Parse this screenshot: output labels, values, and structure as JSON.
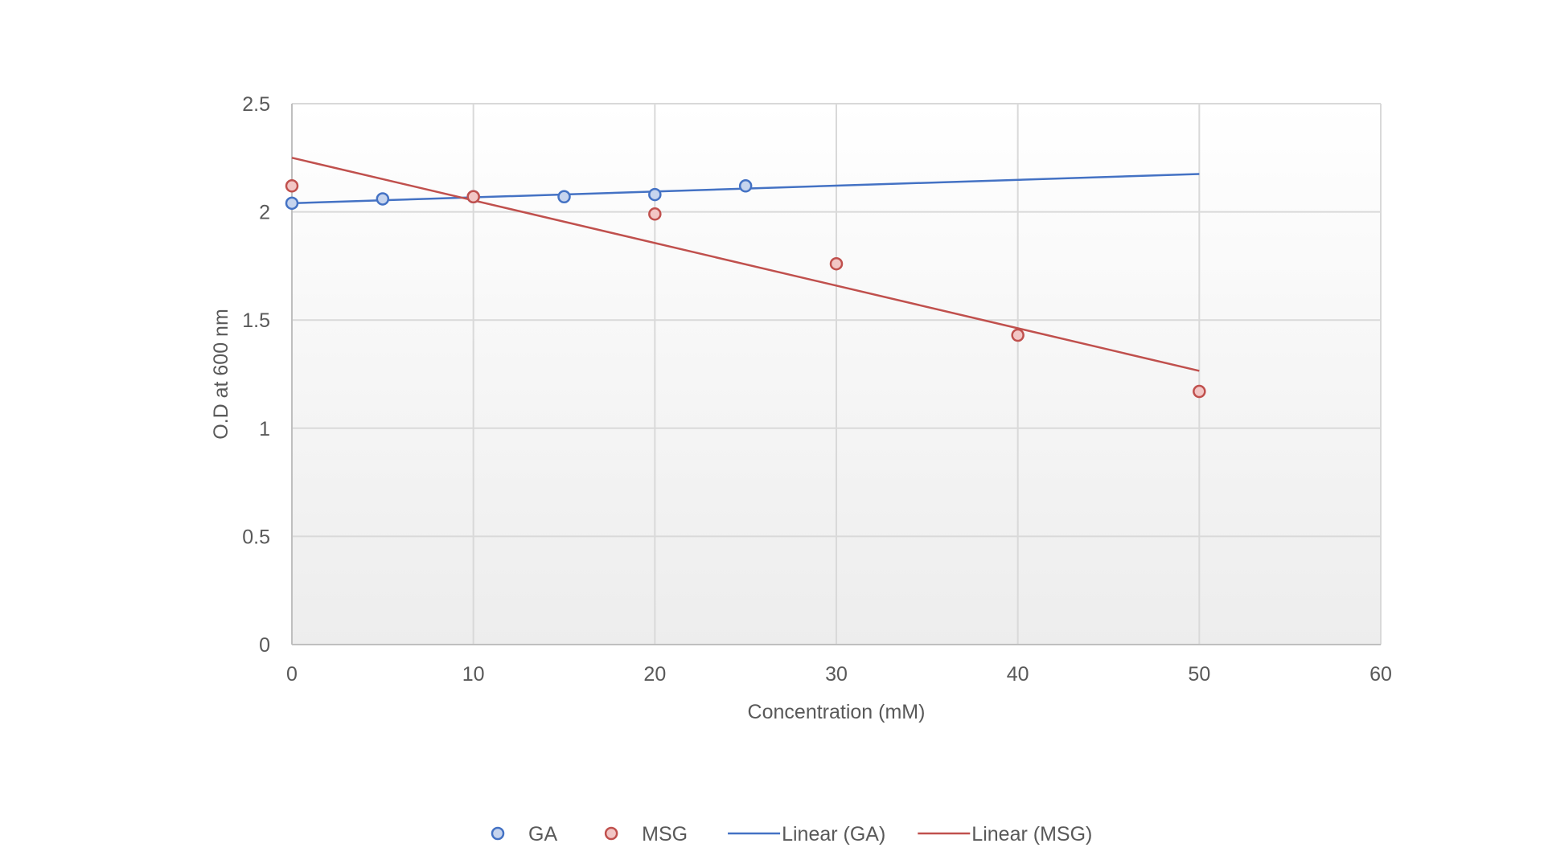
{
  "chart_data": {
    "type": "scatter",
    "title": "",
    "xlabel": "Concentration (mM)",
    "ylabel": "O.D at 600 nm",
    "xlim": [
      0,
      60
    ],
    "ylim": [
      0,
      2.5
    ],
    "x_ticks": [
      "0",
      "10",
      "20",
      "30",
      "40",
      "50",
      "60"
    ],
    "y_ticks": [
      "0",
      "0.5",
      "1",
      "1.5",
      "2",
      "2.5"
    ],
    "grid": true,
    "legend_position": "bottom",
    "series": [
      {
        "name": "GA",
        "color": "#4472C4",
        "fill": "#C6D4EE",
        "points": [
          {
            "x": 0,
            "y": 2.04
          },
          {
            "x": 5,
            "y": 2.06
          },
          {
            "x": 10,
            "y": 2.07
          },
          {
            "x": 15,
            "y": 2.07
          },
          {
            "x": 20,
            "y": 2.08
          },
          {
            "x": 25,
            "y": 2.12
          }
        ]
      },
      {
        "name": "MSG",
        "color": "#C0504D",
        "fill": "#F2C6C5",
        "points": [
          {
            "x": 0,
            "y": 2.12
          },
          {
            "x": 10,
            "y": 2.07
          },
          {
            "x": 20,
            "y": 1.99
          },
          {
            "x": 30,
            "y": 1.76
          },
          {
            "x": 40,
            "y": 1.43
          },
          {
            "x": 50,
            "y": 1.17
          }
        ]
      }
    ],
    "trendlines": [
      {
        "name": "Linear (GA)",
        "color": "#4472C4",
        "x": [
          0,
          50
        ],
        "y": [
          2.04,
          2.175
        ]
      },
      {
        "name": "Linear (MSG)",
        "color": "#C0504D",
        "x": [
          0,
          50
        ],
        "y": [
          2.25,
          1.265
        ]
      }
    ]
  }
}
